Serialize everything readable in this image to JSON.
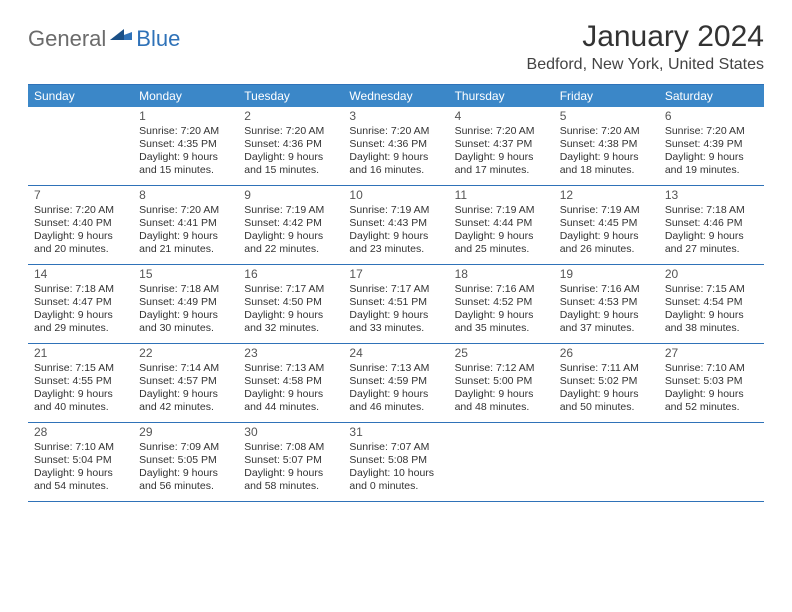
{
  "logo": {
    "text1": "General",
    "text2": "Blue"
  },
  "title": "January 2024",
  "location": "Bedford, New York, United States",
  "colors": {
    "header_bg": "#3b87c8",
    "border": "#2f72b8",
    "text": "#333333",
    "logo_blue": "#2f72b8",
    "logo_grey": "#6b6b6b"
  },
  "weekdays": [
    "Sunday",
    "Monday",
    "Tuesday",
    "Wednesday",
    "Thursday",
    "Friday",
    "Saturday"
  ],
  "weeks": [
    [
      {
        "n": "",
        "l1": "",
        "l2": "",
        "l3": "",
        "l4": ""
      },
      {
        "n": "1",
        "l1": "Sunrise: 7:20 AM",
        "l2": "Sunset: 4:35 PM",
        "l3": "Daylight: 9 hours",
        "l4": "and 15 minutes."
      },
      {
        "n": "2",
        "l1": "Sunrise: 7:20 AM",
        "l2": "Sunset: 4:36 PM",
        "l3": "Daylight: 9 hours",
        "l4": "and 15 minutes."
      },
      {
        "n": "3",
        "l1": "Sunrise: 7:20 AM",
        "l2": "Sunset: 4:36 PM",
        "l3": "Daylight: 9 hours",
        "l4": "and 16 minutes."
      },
      {
        "n": "4",
        "l1": "Sunrise: 7:20 AM",
        "l2": "Sunset: 4:37 PM",
        "l3": "Daylight: 9 hours",
        "l4": "and 17 minutes."
      },
      {
        "n": "5",
        "l1": "Sunrise: 7:20 AM",
        "l2": "Sunset: 4:38 PM",
        "l3": "Daylight: 9 hours",
        "l4": "and 18 minutes."
      },
      {
        "n": "6",
        "l1": "Sunrise: 7:20 AM",
        "l2": "Sunset: 4:39 PM",
        "l3": "Daylight: 9 hours",
        "l4": "and 19 minutes."
      }
    ],
    [
      {
        "n": "7",
        "l1": "Sunrise: 7:20 AM",
        "l2": "Sunset: 4:40 PM",
        "l3": "Daylight: 9 hours",
        "l4": "and 20 minutes."
      },
      {
        "n": "8",
        "l1": "Sunrise: 7:20 AM",
        "l2": "Sunset: 4:41 PM",
        "l3": "Daylight: 9 hours",
        "l4": "and 21 minutes."
      },
      {
        "n": "9",
        "l1": "Sunrise: 7:19 AM",
        "l2": "Sunset: 4:42 PM",
        "l3": "Daylight: 9 hours",
        "l4": "and 22 minutes."
      },
      {
        "n": "10",
        "l1": "Sunrise: 7:19 AM",
        "l2": "Sunset: 4:43 PM",
        "l3": "Daylight: 9 hours",
        "l4": "and 23 minutes."
      },
      {
        "n": "11",
        "l1": "Sunrise: 7:19 AM",
        "l2": "Sunset: 4:44 PM",
        "l3": "Daylight: 9 hours",
        "l4": "and 25 minutes."
      },
      {
        "n": "12",
        "l1": "Sunrise: 7:19 AM",
        "l2": "Sunset: 4:45 PM",
        "l3": "Daylight: 9 hours",
        "l4": "and 26 minutes."
      },
      {
        "n": "13",
        "l1": "Sunrise: 7:18 AM",
        "l2": "Sunset: 4:46 PM",
        "l3": "Daylight: 9 hours",
        "l4": "and 27 minutes."
      }
    ],
    [
      {
        "n": "14",
        "l1": "Sunrise: 7:18 AM",
        "l2": "Sunset: 4:47 PM",
        "l3": "Daylight: 9 hours",
        "l4": "and 29 minutes."
      },
      {
        "n": "15",
        "l1": "Sunrise: 7:18 AM",
        "l2": "Sunset: 4:49 PM",
        "l3": "Daylight: 9 hours",
        "l4": "and 30 minutes."
      },
      {
        "n": "16",
        "l1": "Sunrise: 7:17 AM",
        "l2": "Sunset: 4:50 PM",
        "l3": "Daylight: 9 hours",
        "l4": "and 32 minutes."
      },
      {
        "n": "17",
        "l1": "Sunrise: 7:17 AM",
        "l2": "Sunset: 4:51 PM",
        "l3": "Daylight: 9 hours",
        "l4": "and 33 minutes."
      },
      {
        "n": "18",
        "l1": "Sunrise: 7:16 AM",
        "l2": "Sunset: 4:52 PM",
        "l3": "Daylight: 9 hours",
        "l4": "and 35 minutes."
      },
      {
        "n": "19",
        "l1": "Sunrise: 7:16 AM",
        "l2": "Sunset: 4:53 PM",
        "l3": "Daylight: 9 hours",
        "l4": "and 37 minutes."
      },
      {
        "n": "20",
        "l1": "Sunrise: 7:15 AM",
        "l2": "Sunset: 4:54 PM",
        "l3": "Daylight: 9 hours",
        "l4": "and 38 minutes."
      }
    ],
    [
      {
        "n": "21",
        "l1": "Sunrise: 7:15 AM",
        "l2": "Sunset: 4:55 PM",
        "l3": "Daylight: 9 hours",
        "l4": "and 40 minutes."
      },
      {
        "n": "22",
        "l1": "Sunrise: 7:14 AM",
        "l2": "Sunset: 4:57 PM",
        "l3": "Daylight: 9 hours",
        "l4": "and 42 minutes."
      },
      {
        "n": "23",
        "l1": "Sunrise: 7:13 AM",
        "l2": "Sunset: 4:58 PM",
        "l3": "Daylight: 9 hours",
        "l4": "and 44 minutes."
      },
      {
        "n": "24",
        "l1": "Sunrise: 7:13 AM",
        "l2": "Sunset: 4:59 PM",
        "l3": "Daylight: 9 hours",
        "l4": "and 46 minutes."
      },
      {
        "n": "25",
        "l1": "Sunrise: 7:12 AM",
        "l2": "Sunset: 5:00 PM",
        "l3": "Daylight: 9 hours",
        "l4": "and 48 minutes."
      },
      {
        "n": "26",
        "l1": "Sunrise: 7:11 AM",
        "l2": "Sunset: 5:02 PM",
        "l3": "Daylight: 9 hours",
        "l4": "and 50 minutes."
      },
      {
        "n": "27",
        "l1": "Sunrise: 7:10 AM",
        "l2": "Sunset: 5:03 PM",
        "l3": "Daylight: 9 hours",
        "l4": "and 52 minutes."
      }
    ],
    [
      {
        "n": "28",
        "l1": "Sunrise: 7:10 AM",
        "l2": "Sunset: 5:04 PM",
        "l3": "Daylight: 9 hours",
        "l4": "and 54 minutes."
      },
      {
        "n": "29",
        "l1": "Sunrise: 7:09 AM",
        "l2": "Sunset: 5:05 PM",
        "l3": "Daylight: 9 hours",
        "l4": "and 56 minutes."
      },
      {
        "n": "30",
        "l1": "Sunrise: 7:08 AM",
        "l2": "Sunset: 5:07 PM",
        "l3": "Daylight: 9 hours",
        "l4": "and 58 minutes."
      },
      {
        "n": "31",
        "l1": "Sunrise: 7:07 AM",
        "l2": "Sunset: 5:08 PM",
        "l3": "Daylight: 10 hours",
        "l4": "and 0 minutes."
      },
      {
        "n": "",
        "l1": "",
        "l2": "",
        "l3": "",
        "l4": ""
      },
      {
        "n": "",
        "l1": "",
        "l2": "",
        "l3": "",
        "l4": ""
      },
      {
        "n": "",
        "l1": "",
        "l2": "",
        "l3": "",
        "l4": ""
      }
    ]
  ]
}
